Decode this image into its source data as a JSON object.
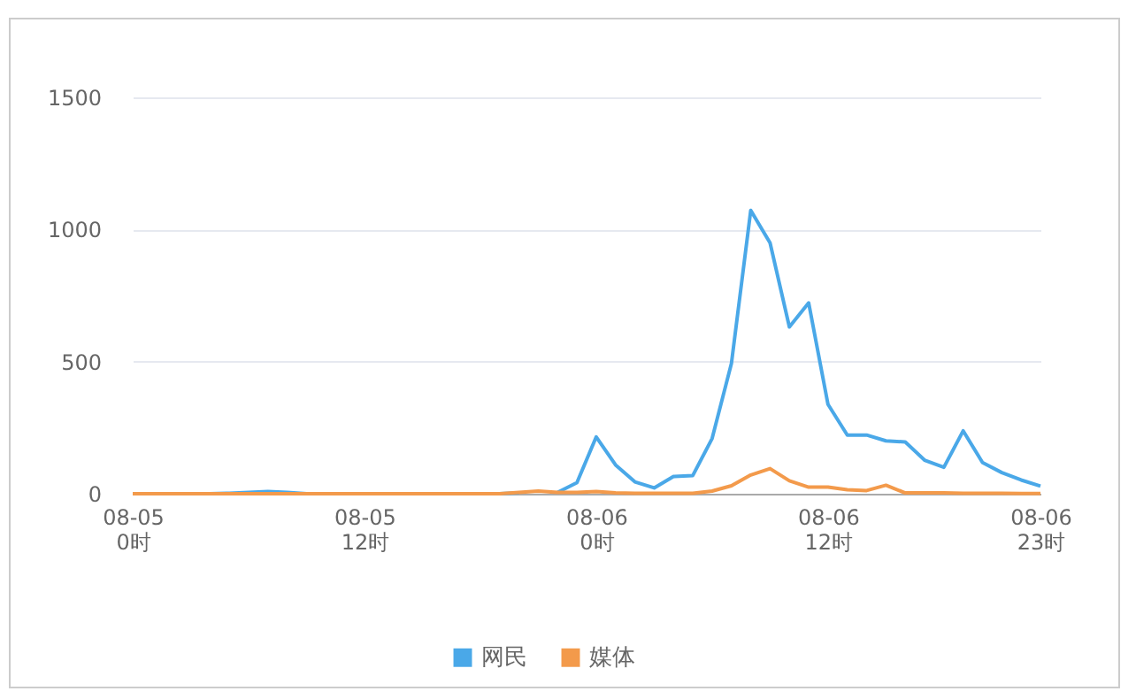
{
  "chart_data": {
    "type": "line",
    "categories": [
      "08-05 0时",
      null,
      null,
      null,
      null,
      null,
      null,
      null,
      null,
      null,
      null,
      null,
      "08-05 12时",
      null,
      null,
      null,
      null,
      null,
      null,
      null,
      null,
      null,
      null,
      null,
      "08-06 0时",
      null,
      null,
      null,
      null,
      null,
      null,
      null,
      null,
      null,
      null,
      null,
      "08-06 12时",
      null,
      null,
      null,
      null,
      null,
      null,
      null,
      null,
      null,
      null,
      "08-06 23时"
    ],
    "series": [
      {
        "name": "网民",
        "color": "#4aa8e8",
        "values": [
          null,
          null,
          null,
          0,
          0,
          2,
          5,
          8,
          5,
          0,
          0,
          0,
          0,
          0,
          0,
          0,
          0,
          null,
          0,
          0,
          3,
          null,
          5,
          42,
          215,
          109,
          45,
          22,
          65,
          69,
          209,
          493,
          1072,
          949,
          631,
          722,
          338,
          222,
          222,
          200,
          196,
          127,
          100,
          238,
          118,
          80,
          52,
          29
        ]
      },
      {
        "name": "媒体",
        "color": "#f39a4b",
        "values": [
          0,
          0,
          0,
          0,
          0,
          0,
          0,
          0,
          0,
          0,
          0,
          0,
          0,
          0,
          0,
          0,
          0,
          0,
          0,
          0,
          5,
          10,
          5,
          5,
          8,
          3,
          2,
          2,
          2,
          2,
          10,
          30,
          71,
          95,
          49,
          25,
          25,
          15,
          12,
          32,
          3,
          3,
          3,
          2,
          2,
          2,
          1,
          1
        ]
      }
    ],
    "ylim": [
      0,
      1500
    ],
    "yticks": [
      0,
      500,
      1000,
      1500
    ],
    "grid": "y",
    "legend": "bottom",
    "line_style": "solid",
    "marker": "none"
  }
}
